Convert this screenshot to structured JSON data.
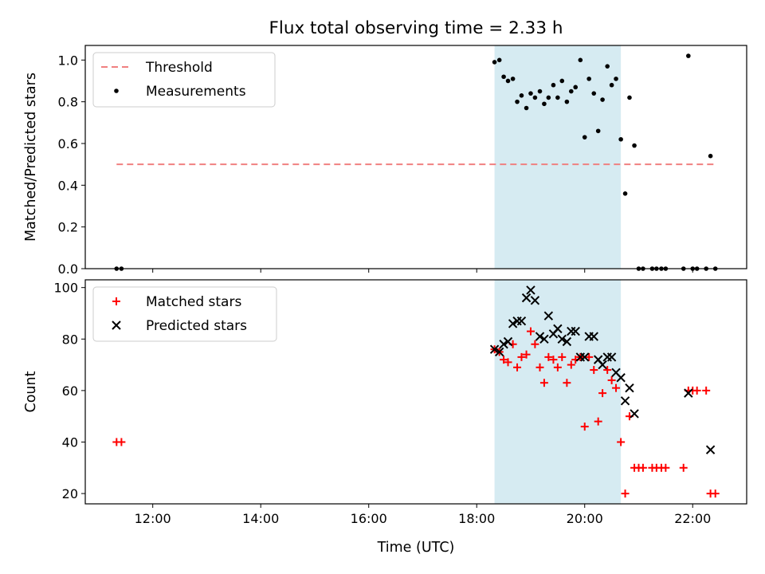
{
  "chart_data": {
    "title": "Flux total observing time = 2.33 h",
    "xlabel": "Time (UTC)",
    "xlim": [
      10.75,
      23.0
    ],
    "xticks": [
      12,
      14,
      16,
      18,
      20,
      22
    ],
    "xtick_labels": [
      "12:00",
      "14:00",
      "16:00",
      "18:00",
      "20:00",
      "22:00"
    ],
    "shaded_span": {
      "x": [
        18.33,
        20.67
      ],
      "color": "#add8e6"
    },
    "panels": [
      {
        "type": "scatter",
        "ylabel": "Matched/Predicted stars",
        "ylim": [
          0,
          1.07
        ],
        "yticks": [
          0.0,
          0.2,
          0.4,
          0.6,
          0.8,
          1.0
        ],
        "ytick_labels": [
          "0.0",
          "0.2",
          "0.4",
          "0.6",
          "0.8",
          "1.0"
        ],
        "legend": {
          "position": "top-left",
          "entries": [
            "Threshold",
            "Measurements"
          ]
        },
        "threshold": {
          "name": "Threshold",
          "value": 0.5,
          "x": [
            11.33,
            22.45
          ],
          "color": "#f08080"
        },
        "series": [
          {
            "name": "Measurements",
            "marker": "dot",
            "color": "#000000",
            "x": [
              11.33,
              11.42,
              18.33,
              18.42,
              18.5,
              18.58,
              18.67,
              18.75,
              18.83,
              18.92,
              19.0,
              19.08,
              19.17,
              19.25,
              19.33,
              19.42,
              19.5,
              19.58,
              19.67,
              19.75,
              19.83,
              19.92,
              20.0,
              20.08,
              20.17,
              20.25,
              20.33,
              20.42,
              20.5,
              20.58,
              20.67,
              20.75,
              20.83,
              20.92,
              21.0,
              21.08,
              21.25,
              21.33,
              21.42,
              21.5,
              21.83,
              21.92,
              22.0,
              22.08,
              22.25,
              22.33,
              22.42
            ],
            "y": [
              0.0,
              0.0,
              0.99,
              1.0,
              0.92,
              0.9,
              0.91,
              0.8,
              0.83,
              0.77,
              0.84,
              0.82,
              0.85,
              0.79,
              0.82,
              0.88,
              0.82,
              0.9,
              0.8,
              0.85,
              0.87,
              1.0,
              0.63,
              0.91,
              0.84,
              0.66,
              0.81,
              0.97,
              0.88,
              0.91,
              0.62,
              0.36,
              0.82,
              0.59,
              0.0,
              0.0,
              0.0,
              0.0,
              0.0,
              0.0,
              0.0,
              1.02,
              0.0,
              0.0,
              0.0,
              0.54,
              0.0
            ]
          }
        ]
      },
      {
        "type": "scatter",
        "ylabel": "Count",
        "ylim": [
          16,
          103
        ],
        "yticks": [
          20,
          40,
          60,
          80,
          100
        ],
        "ytick_labels": [
          "20",
          "40",
          "60",
          "80",
          "100"
        ],
        "legend": {
          "position": "top-left",
          "entries": [
            "Matched stars",
            "Predicted stars"
          ]
        },
        "series": [
          {
            "name": "Matched stars",
            "marker": "plus",
            "color": "#ff0000",
            "x": [
              11.33,
              11.42,
              18.33,
              18.42,
              18.5,
              18.58,
              18.67,
              18.75,
              18.83,
              18.92,
              19.0,
              19.08,
              19.17,
              19.25,
              19.33,
              19.42,
              19.5,
              19.58,
              19.67,
              19.75,
              19.83,
              19.92,
              20.0,
              20.08,
              20.17,
              20.25,
              20.33,
              20.42,
              20.5,
              20.58,
              20.67,
              20.75,
              20.83,
              20.92,
              21.0,
              21.08,
              21.25,
              21.33,
              21.42,
              21.5,
              21.83,
              21.92,
              22.0,
              22.08,
              22.25,
              22.33,
              22.42
            ],
            "y": [
              40,
              40,
              76,
              75,
              72,
              71,
              78,
              69,
              73,
              74,
              83,
              78,
              69,
              63,
              73,
              72,
              69,
              73,
              63,
              70,
              72,
              73,
              46,
              73,
              68,
              48,
              59,
              68,
              64,
              61,
              40,
              20,
              50,
              30,
              30,
              30,
              30,
              30,
              30,
              30,
              30,
              60,
              60,
              60,
              60,
              20,
              20
            ]
          },
          {
            "name": "Predicted stars",
            "marker": "x",
            "color": "#000000",
            "x": [
              18.33,
              18.42,
              18.5,
              18.58,
              18.67,
              18.75,
              18.83,
              18.92,
              19.0,
              19.08,
              19.17,
              19.25,
              19.33,
              19.42,
              19.5,
              19.58,
              19.67,
              19.75,
              19.83,
              19.92,
              20.0,
              20.08,
              20.17,
              20.25,
              20.33,
              20.42,
              20.5,
              20.58,
              20.67,
              20.75,
              20.83,
              20.92,
              21.92,
              22.33
            ],
            "y": [
              76,
              75,
              78,
              79,
              86,
              87,
              87,
              96,
              99,
              95,
              81,
              80,
              89,
              82,
              84,
              80,
              79,
              83,
              83,
              73,
              73,
              81,
              81,
              72,
              70,
              73,
              73,
              67,
              65,
              56,
              61,
              51,
              59,
              37
            ]
          }
        ]
      }
    ]
  }
}
